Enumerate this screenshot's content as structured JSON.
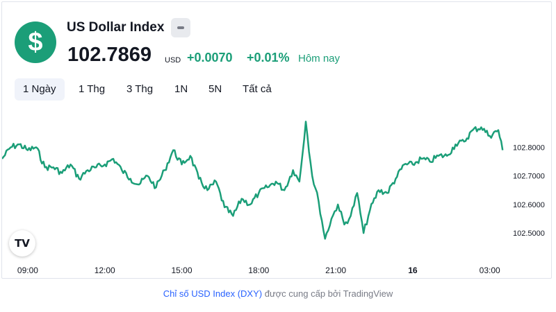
{
  "header": {
    "logo_glyph": "$",
    "title": "US Dollar Index",
    "price": "102.7869",
    "currency": "USD",
    "change": "+0.0070",
    "change_pct": "+0.01%",
    "period": "Hôm nay"
  },
  "tabs": [
    {
      "label": "1 Ngày",
      "active": true
    },
    {
      "label": "1 Thg",
      "active": false
    },
    {
      "label": "3 Thg",
      "active": false
    },
    {
      "label": "1N",
      "active": false
    },
    {
      "label": "5N",
      "active": false
    },
    {
      "label": "Tất cả",
      "active": false
    }
  ],
  "tv_logo": "TV",
  "footer": {
    "link": "Chỉ số USD Index (DXY)",
    "text": "được cung cấp bởi TradingView"
  },
  "colors": {
    "line": "#1b9e78",
    "positive": "#1b9e78",
    "link": "#2962ff"
  },
  "chart_data": {
    "type": "line",
    "series": [
      {
        "values": [
          [
            "08:00",
            102.76
          ],
          [
            "08:20",
            102.8
          ],
          [
            "08:40",
            102.81
          ],
          [
            "09:00",
            102.79
          ],
          [
            "09:20",
            102.8
          ],
          [
            "09:40",
            102.73
          ],
          [
            "10:00",
            102.73
          ],
          [
            "10:20",
            102.71
          ],
          [
            "10:40",
            102.74
          ],
          [
            "11:00",
            102.69
          ],
          [
            "11:20",
            102.72
          ],
          [
            "11:40",
            102.73
          ],
          [
            "12:00",
            102.74
          ],
          [
            "12:20",
            102.76
          ],
          [
            "12:40",
            102.72
          ],
          [
            "13:00",
            102.69
          ],
          [
            "13:20",
            102.67
          ],
          [
            "13:40",
            102.7
          ],
          [
            "14:00",
            102.66
          ],
          [
            "14:20",
            102.72
          ],
          [
            "14:40",
            102.79
          ],
          [
            "15:00",
            102.74
          ],
          [
            "15:20",
            102.77
          ],
          [
            "15:40",
            102.69
          ],
          [
            "16:00",
            102.65
          ],
          [
            "16:20",
            102.68
          ],
          [
            "16:40",
            102.59
          ],
          [
            "17:00",
            102.56
          ],
          [
            "17:20",
            102.62
          ],
          [
            "17:40",
            102.6
          ],
          [
            "18:00",
            102.64
          ],
          [
            "18:20",
            102.66
          ],
          [
            "18:40",
            102.68
          ],
          [
            "19:00",
            102.65
          ],
          [
            "19:20",
            102.72
          ],
          [
            "19:35",
            102.68
          ],
          [
            "19:50",
            102.89
          ],
          [
            "20:05",
            102.7
          ],
          [
            "20:20",
            102.61
          ],
          [
            "20:35",
            102.48
          ],
          [
            "20:50",
            102.55
          ],
          [
            "21:05",
            102.6
          ],
          [
            "21:20",
            102.53
          ],
          [
            "21:35",
            102.56
          ],
          [
            "21:50",
            102.64
          ],
          [
            "22:05",
            102.5
          ],
          [
            "22:20",
            102.58
          ],
          [
            "22:40",
            102.65
          ],
          [
            "23:00",
            102.64
          ],
          [
            "23:20",
            102.69
          ],
          [
            "23:40",
            102.74
          ],
          [
            "00:00",
            102.74
          ],
          [
            "00:20",
            102.76
          ],
          [
            "00:40",
            102.75
          ],
          [
            "01:00",
            102.77
          ],
          [
            "01:20",
            102.77
          ],
          [
            "01:40",
            102.81
          ],
          [
            "02:00",
            102.82
          ],
          [
            "02:20",
            102.86
          ],
          [
            "02:40",
            102.87
          ],
          [
            "03:00",
            102.84
          ],
          [
            "03:20",
            102.86
          ],
          [
            "03:30",
            102.79
          ]
        ]
      }
    ],
    "x_ticks": [
      "09:00",
      "12:00",
      "15:00",
      "18:00",
      "21:00",
      "16",
      "03:00"
    ],
    "y_ticks": [
      "102.8000",
      "102.7000",
      "102.6000",
      "102.5000"
    ],
    "ylim": [
      102.43,
      102.92
    ],
    "grid": false
  }
}
